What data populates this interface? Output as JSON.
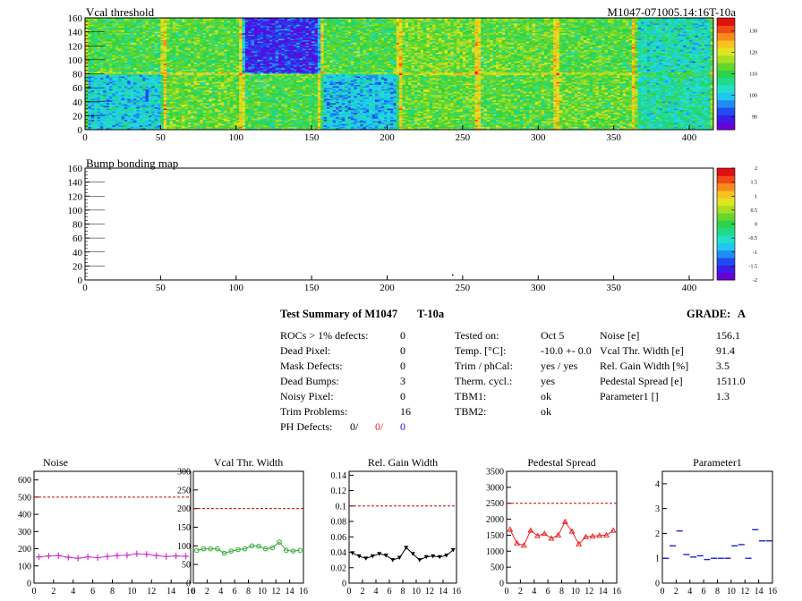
{
  "header": {
    "map1_title": "Vcal threshold",
    "map2_title": "Bump bonding map",
    "module_id": "M1047-071005.14:16T-10a"
  },
  "colors": {
    "magenta": "#cc33cc",
    "green": "#33aa33",
    "black": "#000000",
    "red": "#ee2222",
    "blue": "#2222cc",
    "ref_line": "#cc0000"
  },
  "summary": {
    "title": "Test Summary of M1047",
    "tag": "T-10a",
    "grade_label": "GRADE:",
    "grade": "A",
    "defects": [
      {
        "label": "ROCs > 1% defects:",
        "value": "0"
      },
      {
        "label": "Dead Pixel:",
        "value": "0"
      },
      {
        "label": "Mask Defects:",
        "value": "0"
      },
      {
        "label": "Dead Bumps:",
        "value": "3"
      },
      {
        "label": "Noisy Pixel:",
        "value": "0"
      },
      {
        "label": "Trim Problems:",
        "value": "16"
      }
    ],
    "ph_label": "PH Defects:",
    "ph_values": [
      "0/",
      "0/",
      "0"
    ],
    "conditions": [
      {
        "label": "Tested on:",
        "value": "Oct 5"
      },
      {
        "label": "Temp. [°C]:",
        "value": "-10.0 +- 0.0"
      },
      {
        "label": "Trim / phCal:",
        "value": "yes / yes"
      },
      {
        "label": "Therm. cycl.:",
        "value": "yes"
      },
      {
        "label": "TBM1:",
        "value": "ok"
      },
      {
        "label": "TBM2:",
        "value": "ok"
      }
    ],
    "results": [
      {
        "label": "Noise [e]",
        "value": "156.1"
      },
      {
        "label": "Vcal Thr. Width [e]",
        "value": "91.4"
      },
      {
        "label": "Rel. Gain Width [%]",
        "value": "3.5"
      },
      {
        "label": "Pedestal Spread [e]",
        "value": "1511.0"
      },
      {
        "label": "Parameter1 []",
        "value": "1.3"
      }
    ]
  },
  "chart_data": [
    {
      "type": "heatmap",
      "title": "Vcal threshold",
      "xlim": [
        0,
        416
      ],
      "ylim": [
        0,
        160
      ],
      "x_ticks": [
        "0",
        "50",
        "100",
        "150",
        "200",
        "250",
        "300",
        "350",
        "400"
      ],
      "y_ticks": [
        "0",
        "20",
        "40",
        "60",
        "80",
        "100",
        "120",
        "140",
        "160"
      ],
      "z_ticks": [
        "90",
        "100",
        "110",
        "120",
        "130"
      ],
      "zlim": [
        84,
        136
      ],
      "roc_means_top_row": [
        111,
        112,
        90,
        111,
        114,
        113,
        112,
        104
      ],
      "roc_means_bottom_row": [
        101,
        113,
        111,
        100,
        113,
        112,
        113,
        105
      ]
    },
    {
      "type": "heatmap",
      "title": "Bump bonding map",
      "xlim": [
        0,
        416
      ],
      "ylim": [
        0,
        160
      ],
      "x_ticks": [
        "0",
        "50",
        "100",
        "150",
        "200",
        "250",
        "300",
        "350",
        "400"
      ],
      "y_ticks": [
        "0",
        "20",
        "40",
        "60",
        "80",
        "100",
        "120",
        "140",
        "160"
      ],
      "z_ticks": [
        "-2",
        "-1.5",
        "-1",
        "-0.5",
        "0",
        "0.5",
        "1",
        "1.5",
        "2"
      ],
      "zlim": [
        -2,
        2
      ],
      "defect_points": [
        [
          243,
          8
        ]
      ]
    },
    {
      "type": "line",
      "title": "Noise",
      "color_key": "magenta",
      "x": [
        0,
        1,
        2,
        3,
        4,
        5,
        6,
        7,
        8,
        9,
        10,
        11,
        12,
        13,
        14,
        15
      ],
      "values": [
        152,
        158,
        160,
        150,
        145,
        152,
        148,
        155,
        160,
        162,
        170,
        168,
        160,
        155,
        158,
        156
      ],
      "ylim": [
        0,
        650
      ],
      "ref": 500,
      "y_ticks": [
        "0",
        "100",
        "200",
        "300",
        "400",
        "500",
        "600"
      ],
      "x_ticks": [
        "0",
        "2",
        "4",
        "6",
        "8",
        "10",
        "12",
        "14",
        "16"
      ]
    },
    {
      "type": "line",
      "title": "Vcal Thr. Width",
      "color_key": "green",
      "x": [
        0,
        1,
        2,
        3,
        4,
        5,
        6,
        7,
        8,
        9,
        10,
        11,
        12,
        13,
        14,
        15
      ],
      "values": [
        88,
        92,
        92,
        92,
        80,
        86,
        90,
        92,
        100,
        99,
        92,
        95,
        110,
        88,
        86,
        88
      ],
      "ylim": [
        0,
        300
      ],
      "ref": 200,
      "y_ticks": [
        "0",
        "50",
        "100",
        "150",
        "200",
        "250",
        "300"
      ],
      "x_ticks": [
        "0",
        "2",
        "4",
        "6",
        "8",
        "10",
        "12",
        "14",
        "16"
      ]
    },
    {
      "type": "line",
      "title": "Rel. Gain Width",
      "color_key": "black",
      "x": [
        0,
        1,
        2,
        3,
        4,
        5,
        6,
        7,
        8,
        9,
        10,
        11,
        12,
        13,
        14,
        15
      ],
      "values": [
        0.039,
        0.035,
        0.032,
        0.035,
        0.038,
        0.036,
        0.03,
        0.033,
        0.046,
        0.038,
        0.03,
        0.034,
        0.035,
        0.034,
        0.036,
        0.043
      ],
      "ylim": [
        0,
        0.145
      ],
      "ref": 0.1,
      "y_ticks": [
        "0",
        "0.02",
        "0.04",
        "0.06",
        "0.08",
        "0.1",
        "0.12",
        "0.14"
      ],
      "x_ticks": [
        "0",
        "2",
        "4",
        "6",
        "8",
        "10",
        "12",
        "14",
        "16"
      ]
    },
    {
      "type": "line",
      "title": "Pedestal Spread",
      "color_key": "red",
      "x": [
        0,
        1,
        2,
        3,
        4,
        5,
        6,
        7,
        8,
        9,
        10,
        11,
        12,
        13,
        14,
        15
      ],
      "values": [
        1680,
        1250,
        1180,
        1650,
        1480,
        1550,
        1400,
        1500,
        1920,
        1620,
        1220,
        1450,
        1470,
        1490,
        1500,
        1650
      ],
      "ylim": [
        0,
        3500
      ],
      "ref": 2500,
      "y_ticks": [
        "0",
        "500",
        "1000",
        "1500",
        "2000",
        "2500",
        "3000",
        "3500"
      ],
      "x_ticks": [
        "0",
        "2",
        "4",
        "6",
        "8",
        "10",
        "12",
        "14",
        "16"
      ]
    },
    {
      "type": "scatter",
      "title": "Parameter1",
      "color_key": "blue",
      "x": [
        0,
        1,
        2,
        3,
        4,
        5,
        6,
        7,
        8,
        9,
        10,
        11,
        12,
        13,
        14,
        15
      ],
      "values": [
        1.0,
        1.5,
        2.1,
        1.15,
        1.05,
        1.1,
        0.95,
        1.0,
        1.0,
        1.0,
        1.5,
        1.55,
        1.0,
        2.15,
        1.7,
        1.7
      ],
      "ylim": [
        0,
        4.5
      ],
      "y_ticks": [
        "0",
        "1",
        "2",
        "3",
        "4"
      ],
      "x_ticks": [
        "0",
        "2",
        "4",
        "6",
        "8",
        "10",
        "12",
        "14",
        "16"
      ]
    }
  ]
}
